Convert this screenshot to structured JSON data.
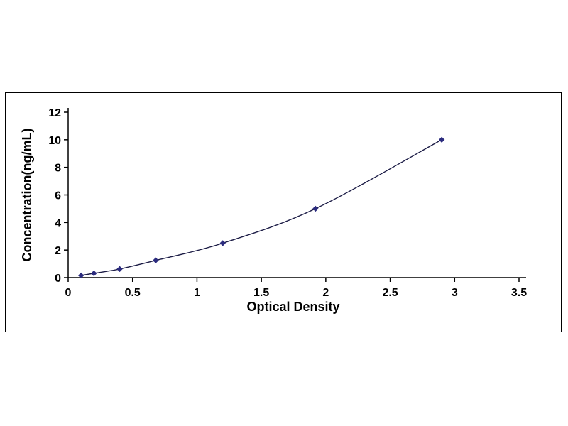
{
  "chart_data": {
    "type": "line",
    "title": "",
    "xlabel": "Optical Density",
    "ylabel": "Concentration(ng/mL)",
    "x": [
      0.1,
      0.2,
      0.4,
      0.68,
      1.2,
      1.92,
      2.9
    ],
    "y": [
      0.156,
      0.312,
      0.625,
      1.25,
      2.5,
      5,
      10
    ],
    "xlim": [
      0,
      3.5
    ],
    "ylim": [
      0,
      12
    ],
    "x_ticks": [
      0,
      0.5,
      1,
      1.5,
      2,
      2.5,
      3,
      3.5
    ],
    "y_ticks": [
      0,
      2,
      4,
      6,
      8,
      10,
      12
    ],
    "grid": false,
    "legend": "none",
    "marker": "diamond",
    "line_color": "#1b1b45",
    "marker_color": "#2b2b7e",
    "axis_color": "#000000"
  }
}
